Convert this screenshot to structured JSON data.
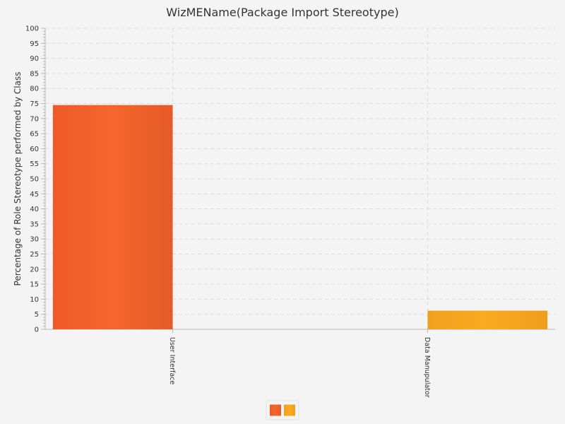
{
  "chart_data": {
    "type": "bar",
    "title": "WizMEName(Package Import Stereotype)",
    "xlabel": "",
    "ylabel": "Percentage of Role Stereotype performed by Class",
    "categories": [
      "User Interface",
      "Data Manupulator"
    ],
    "series": [
      {
        "values": [
          74.5,
          0
        ],
        "color": "#f0602a"
      },
      {
        "values": [
          0,
          6.2
        ],
        "color": "#f7a21e"
      }
    ],
    "ylim": [
      0,
      100
    ],
    "ytick_step": 5,
    "grid": true,
    "legend": "bottom-center"
  }
}
